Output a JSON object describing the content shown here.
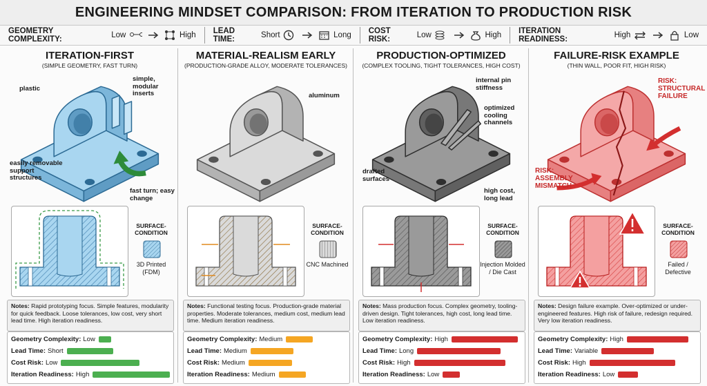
{
  "header": {
    "title": "ENGINEERING MINDSET COMPARISON: FROM ITERATION TO PRODUCTION RISK",
    "legend": [
      {
        "label": "GEOMETRY COMPLEXITY:",
        "from": "Low",
        "to": "High"
      },
      {
        "label": "LEAD TIME:",
        "from": "Short",
        "to": "Long"
      },
      {
        "label": "COST RISK:",
        "from": "Low",
        "to": "High"
      },
      {
        "label": "ITERATION READINESS:",
        "from": "High",
        "to": "Low"
      }
    ]
  },
  "columns": [
    {
      "title": "ITERATION-FIRST",
      "subtitle": "(SIMPLE GEOMETRY, FAST TURN)",
      "callouts": [
        "plastic",
        "simple, modular inserts",
        "easily removable support structures",
        "fast turn; easy change"
      ],
      "surface_label": "SURFACE-CONDITION",
      "surface": "3D Printed (FDM)",
      "notes_label": "Notes:",
      "notes": "Rapid prototyping focus. Simple features, modularity for quick feedback. Loose tolerances, low cost, very short lead time. High iteration readiness.",
      "metrics": [
        {
          "label": "Geometry Complexity:",
          "value": "Low"
        },
        {
          "label": "Lead Time:",
          "value": "Short"
        },
        {
          "label": "Cost Risk:",
          "value": "Low"
        },
        {
          "label": "Iteration Readiness:",
          "value": "High"
        }
      ]
    },
    {
      "title": "MATERIAL-REALISM EARLY",
      "subtitle": "(PRODUCTION-GRADE ALLOY, MODERATE TOLERANCES)",
      "callouts": [
        "aluminum"
      ],
      "surface_label": "SURFACE-CONDITION",
      "surface": "CNC Machined",
      "notes_label": "Notes:",
      "notes": "Functional testing focus. Production-grade material properties. Moderate tolerances, medium cost, medium lead time. Medium iteration readiness.",
      "metrics": [
        {
          "label": "Geometry Complexity:",
          "value": "Medium"
        },
        {
          "label": "Lead Time:",
          "value": "Medium"
        },
        {
          "label": "Cost Risk:",
          "value": "Medium"
        },
        {
          "label": "Iteration Readiness:",
          "value": "Medium"
        }
      ]
    },
    {
      "title": "PRODUCTION-OPTIMIZED",
      "subtitle": "(COMPLEX TOOLING, TIGHT TOLERANCES, HIGH COST)",
      "callouts": [
        "internal pin stiffness",
        "optimized cooling channels",
        "drafted surfaces",
        "high cost, long lead"
      ],
      "surface_label": "SURFACE-CONDITION",
      "surface": "Injection Molded / Die Cast",
      "notes_label": "Notes:",
      "notes": "Mass production focus. Complex geometry, tooling-driven design. Tight tolerances, high cost, long lead time. Low iteration readiness.",
      "metrics": [
        {
          "label": "Geometry Complexity:",
          "value": "High"
        },
        {
          "label": "Lead Time:",
          "value": "Long"
        },
        {
          "label": "Cost Risk:",
          "value": "High"
        },
        {
          "label": "Iteration Readiness:",
          "value": "Low"
        }
      ]
    },
    {
      "title": "FAILURE-RISK EXAMPLE",
      "subtitle": "(THIN WALL, POOR FIT, HIGH RISK)",
      "callouts": [
        "RISK: STRUCTURAL FAILURE",
        "RISK: ASSEMBLY MISMATCH"
      ],
      "surface_label": "SURFACE-CONDITION",
      "surface": "Failed / Defective",
      "notes_label": "Notes:",
      "notes": "Design failure example. Over-optimized or under-engineered features. High risk of failure, redesign required. Very low iteration readiness.",
      "metrics": [
        {
          "label": "Geometry Complexity:",
          "value": "High"
        },
        {
          "label": "Lead Time:",
          "value": "Variable"
        },
        {
          "label": "Cost Risk:",
          "value": "High"
        },
        {
          "label": "Iteration Readiness:",
          "value": "Low"
        }
      ]
    }
  ]
}
